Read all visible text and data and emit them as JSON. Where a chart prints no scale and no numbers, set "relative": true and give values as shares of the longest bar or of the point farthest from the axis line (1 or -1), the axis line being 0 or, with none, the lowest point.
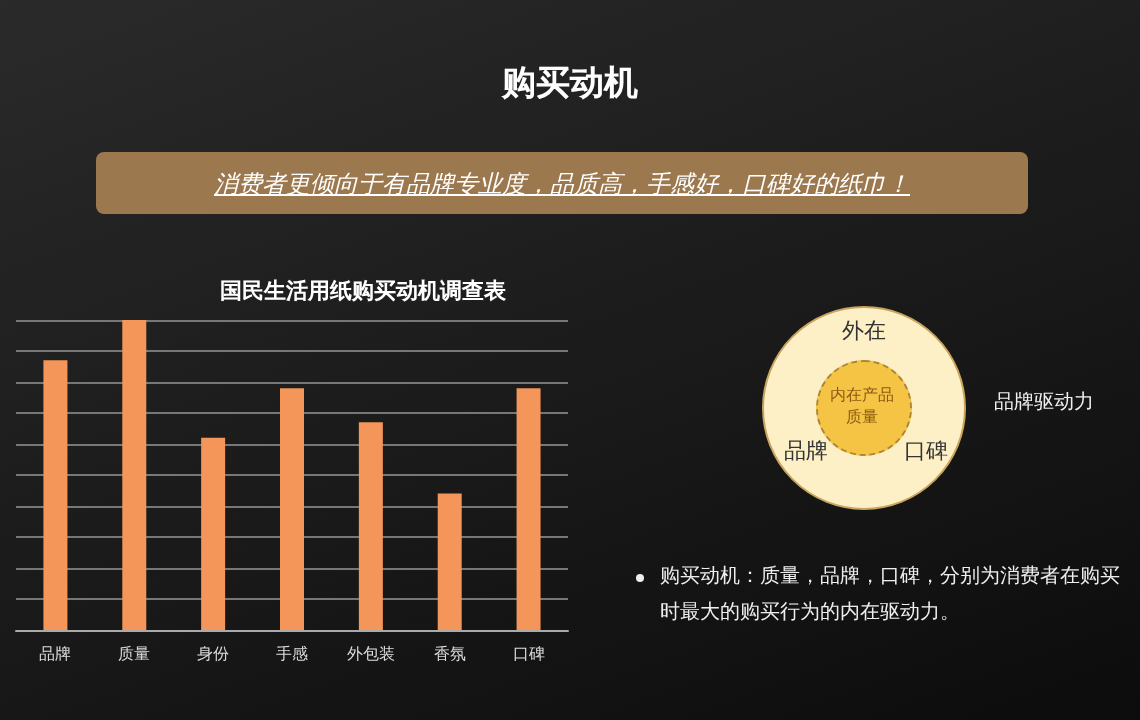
{
  "chart_data": {
    "type": "bar",
    "title": "购买动机",
    "subtitle": "国民生活用纸购买动机调查表",
    "categories": [
      "品牌",
      "质量",
      "身份",
      "手感",
      "外包装",
      "香氛",
      "口碑"
    ],
    "values": [
      0.87,
      1,
      0.62,
      0.78,
      0.67,
      0.44,
      0.78
    ],
    "relative": true,
    "color": "#f4965a",
    "grid": "y",
    "annotations": [
      "消费者更倾向于有品牌专业度，品质高，手感好，口碑好的纸巾！",
      "外在",
      "内在产品质量",
      "品牌",
      "口碑",
      "品牌驱动力",
      "购买动机：质量，品牌，口碑，分别为消费者在购买时最大的购买行为的内在驱动力。"
    ]
  }
}
